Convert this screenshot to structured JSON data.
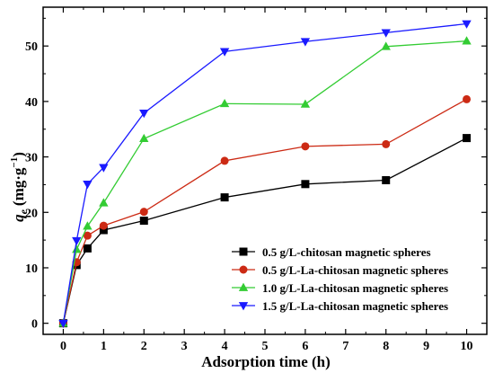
{
  "chart_data": {
    "type": "line",
    "xlabel": "Adsorption time (h)",
    "ylabel_main": "q",
    "ylabel_sub": "e",
    "ylabel_unit": "(mg·g",
    "ylabel_sup": "−1",
    "ylabel_close": ")",
    "xlim": [
      -0.5,
      10.5
    ],
    "ylim": [
      -2,
      57
    ],
    "xticks": [
      0,
      1,
      2,
      3,
      4,
      5,
      6,
      7,
      8,
      9,
      10
    ],
    "yticks": [
      0,
      10,
      20,
      30,
      40,
      50
    ],
    "grid": false,
    "legend_position": "bottom-right",
    "series": [
      {
        "name": "0.5 g/L-chitosan magnetic spheres",
        "color": "#000000",
        "marker": "square",
        "x": [
          0,
          0.33,
          0.6,
          1,
          2,
          4,
          6,
          8,
          10
        ],
        "y": [
          0,
          10.5,
          13.5,
          16.8,
          18.5,
          22.7,
          25.1,
          25.8,
          33.4
        ]
      },
      {
        "name": "0.5 g/L-La-chitosan magnetic spheres",
        "color": "#cc2a14",
        "marker": "circle",
        "x": [
          0,
          0.33,
          0.6,
          1,
          2,
          4,
          6,
          8,
          10
        ],
        "y": [
          0,
          11.0,
          15.8,
          17.6,
          20.1,
          29.3,
          31.9,
          32.3,
          40.4
        ]
      },
      {
        "name": "1.0 g/L-La-chitosan magnetic spheres",
        "color": "#33cc33",
        "marker": "triangle-up",
        "x": [
          0,
          0.33,
          0.6,
          1,
          2,
          4,
          6,
          8,
          10
        ],
        "y": [
          0,
          13.3,
          17.5,
          21.7,
          33.3,
          39.6,
          39.5,
          49.9,
          50.9
        ]
      },
      {
        "name": "1.5 g/L-La-chitosan magnetic spheres",
        "color": "#1a1aff",
        "marker": "triangle-down",
        "x": [
          0,
          0.33,
          0.6,
          1,
          2,
          4,
          6,
          8,
          10
        ],
        "y": [
          0,
          14.9,
          25.1,
          28.1,
          37.9,
          49.0,
          50.8,
          52.4,
          54.0
        ]
      }
    ]
  }
}
